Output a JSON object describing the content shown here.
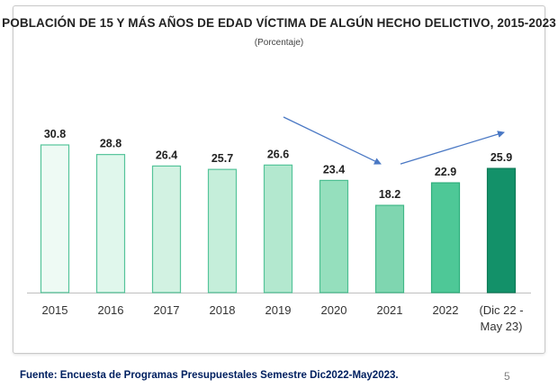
{
  "chart_data": {
    "type": "bar",
    "title": "POBLACIÓN DE 15 Y MÁS AÑOS DE EDAD VÍCTIMA DE ALGÚN HECHO DELICTIVO, 2015-2023",
    "subtitle": "(Porcentaje)",
    "categories": [
      "2015",
      "2016",
      "2017",
      "2018",
      "2019",
      "2020",
      "2021",
      "2022",
      "(Dic 22 - May 23)"
    ],
    "category_lines": [
      [
        "2015"
      ],
      [
        "2016"
      ],
      [
        "2017"
      ],
      [
        "2018"
      ],
      [
        "2019"
      ],
      [
        "2020"
      ],
      [
        "2021"
      ],
      [
        "2022"
      ],
      [
        "(Dic 22 -",
        "May 23)"
      ]
    ],
    "values": [
      30.8,
      28.8,
      26.4,
      25.7,
      26.6,
      23.4,
      18.2,
      22.9,
      25.9
    ],
    "value_labels": [
      "30.8",
      "28.8",
      "26.4",
      "25.7",
      "26.6",
      "23.4",
      "18.2",
      "22.9",
      "25.9"
    ],
    "ylim": [
      0,
      30.8
    ],
    "xlabel": "",
    "ylabel": "",
    "grid": false,
    "bar_fill_colors": [
      "#eefaf4",
      "#e0f7ec",
      "#d2f2e2",
      "#c5eeda",
      "#b3e8cf",
      "#95dfbd",
      "#7fd6b0",
      "#4ec897",
      "#139169"
    ],
    "bar_stroke_colors": [
      "#55c49a",
      "#55c49a",
      "#55c49a",
      "#55c49a",
      "#55c49a",
      "#4cbf92",
      "#42b888",
      "#2fae7c",
      "#0e7a56"
    ],
    "trend_arrow_color": "#4a78c4"
  },
  "footer": {
    "source": "Fuente: Encuesta de Programas Presupuestales Semestre Dic2022-May2023.",
    "page_number": "5"
  }
}
